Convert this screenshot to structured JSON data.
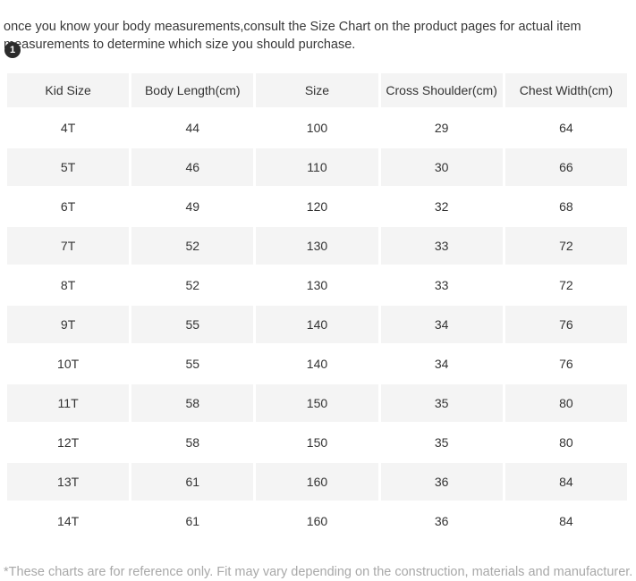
{
  "page": {
    "intro_text": "once you know your body measurements,consult the Size Chart on the product pages for actual item measurements to determine which size you should purchase.",
    "badge_label": "1",
    "footnote": "*These charts are for reference only. Fit may vary depending on the construction, materials and manufacturer."
  },
  "size_chart": {
    "columns": [
      "Kid Size",
      "Body Length(cm)",
      "Size",
      "Cross Shoulder(cm)",
      "Chest Width(cm)"
    ],
    "rows": [
      [
        "4T",
        "44",
        "100",
        "29",
        "64"
      ],
      [
        "5T",
        "46",
        "110",
        "30",
        "66"
      ],
      [
        "6T",
        "49",
        "120",
        "32",
        "68"
      ],
      [
        "7T",
        "52",
        "130",
        "33",
        "72"
      ],
      [
        "8T",
        "52",
        "130",
        "33",
        "72"
      ],
      [
        "9T",
        "55",
        "140",
        "34",
        "76"
      ],
      [
        "10T",
        "55",
        "140",
        "34",
        "76"
      ],
      [
        "11T",
        "58",
        "150",
        "35",
        "80"
      ],
      [
        "12T",
        "58",
        "150",
        "35",
        "80"
      ],
      [
        "13T",
        "61",
        "160",
        "36",
        "84"
      ],
      [
        "14T",
        "61",
        "160",
        "36",
        "84"
      ]
    ]
  },
  "colors": {
    "stripe_bg": "#f4f4f4",
    "intro_text": "#383838",
    "cell_text": "#333333",
    "footnote_gray": "#a8a8a8",
    "badge_bg": "#2c2c2c"
  }
}
